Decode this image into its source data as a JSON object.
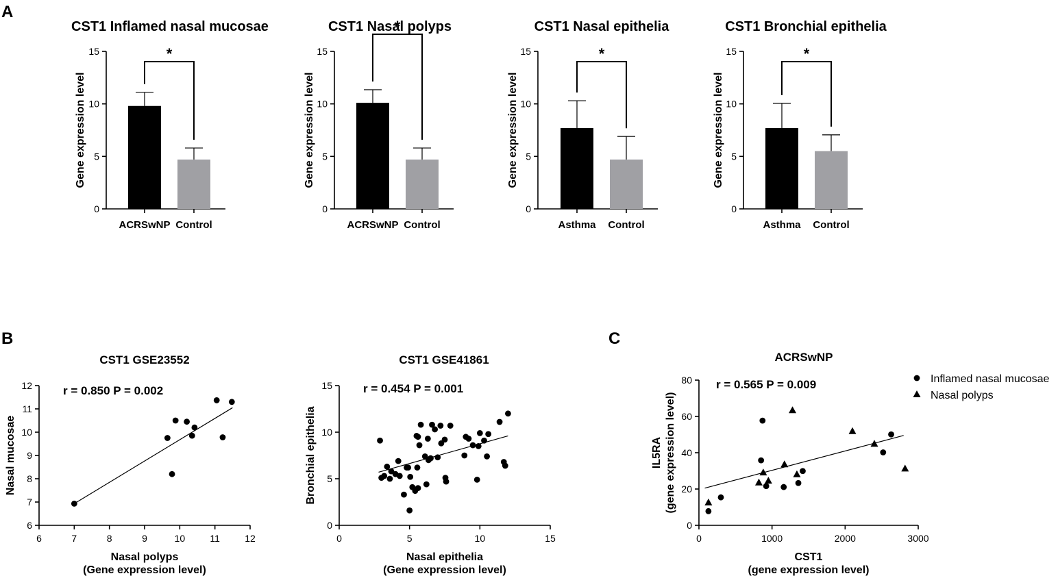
{
  "panel_labels": [
    "A",
    "B",
    "C"
  ],
  "chart_data": [
    {
      "type": "bar",
      "title": "CST1  Inflamed nasal mucosae",
      "categories": [
        "ACRSwNP",
        "Control"
      ],
      "values": [
        9.8,
        4.7
      ],
      "errors": [
        1.3,
        1.1
      ],
      "bar_colors": [
        "#000000",
        "#a0a0a4"
      ],
      "ylabel": "Gene expression level",
      "ylim": [
        0,
        15
      ],
      "yticks": [
        "0",
        "5",
        "10",
        "15"
      ],
      "significance": "*"
    },
    {
      "type": "bar",
      "title": "CST1  Nasal polyps",
      "categories": [
        "ACRSwNP",
        "Control"
      ],
      "values": [
        10.1,
        4.7
      ],
      "errors": [
        1.25,
        1.1
      ],
      "bar_colors": [
        "#000000",
        "#a0a0a4"
      ],
      "ylabel": "Gene expression level",
      "ylim": [
        0,
        15
      ],
      "yticks": [
        "0",
        "5",
        "10",
        "15"
      ],
      "significance": "*"
    },
    {
      "type": "bar",
      "title": "CST1 Nasal epithelia",
      "categories": [
        "Asthma",
        "Control"
      ],
      "values": [
        7.7,
        4.7
      ],
      "errors": [
        2.6,
        2.2
      ],
      "bar_colors": [
        "#000000",
        "#a0a0a4"
      ],
      "ylabel": "Gene expression level",
      "ylim": [
        0,
        15
      ],
      "yticks": [
        "0",
        "5",
        "10",
        "15"
      ],
      "significance": "*"
    },
    {
      "type": "bar",
      "title": "CST1 Bronchial epithelia",
      "categories": [
        "Asthma",
        "Control"
      ],
      "values": [
        7.7,
        5.5
      ],
      "errors": [
        2.35,
        1.55
      ],
      "bar_colors": [
        "#000000",
        "#a0a0a4"
      ],
      "ylabel": "Gene expression level",
      "ylim": [
        0,
        15
      ],
      "yticks": [
        "0",
        "5",
        "10",
        "15"
      ],
      "significance": "*"
    },
    {
      "type": "scatter",
      "title": "CST1 GSE23552",
      "annotation": "r = 0.850  P = 0.002",
      "xlabel": "Nasal polyps",
      "xlabel2": "(Gene expression level)",
      "ylabel": "Nasal mucosae",
      "xlim": [
        6,
        12
      ],
      "ylim": [
        6,
        12
      ],
      "xticks": [
        "6",
        "7",
        "8",
        "9",
        "10",
        "11",
        "12"
      ],
      "yticks": [
        "6",
        "7",
        "8",
        "9",
        "10",
        "11",
        "12"
      ],
      "fit_line": [
        [
          7.0,
          6.93
        ],
        [
          11.5,
          11.05
        ]
      ],
      "points": [
        {
          "x": 7.0,
          "y": 6.93
        },
        {
          "x": 9.65,
          "y": 9.75
        },
        {
          "x": 9.78,
          "y": 8.2
        },
        {
          "x": 9.88,
          "y": 10.5
        },
        {
          "x": 10.2,
          "y": 10.45
        },
        {
          "x": 10.35,
          "y": 9.85
        },
        {
          "x": 10.42,
          "y": 10.2
        },
        {
          "x": 11.05,
          "y": 11.37
        },
        {
          "x": 11.22,
          "y": 9.78
        },
        {
          "x": 11.48,
          "y": 11.3
        }
      ]
    },
    {
      "type": "scatter",
      "title": "CST1  GSE41861",
      "annotation": "r = 0.454  P = 0.001",
      "xlabel": "Nasal epithelia",
      "xlabel2": "(Gene expression level)",
      "ylabel": "Bronchial epithelia",
      "xlim": [
        0,
        15
      ],
      "ylim": [
        0,
        15
      ],
      "xticks": [
        "0",
        "5",
        "10",
        "15"
      ],
      "yticks": [
        "0",
        "5",
        "10",
        "15"
      ],
      "fit_line": [
        [
          2.8,
          5.7
        ],
        [
          12.0,
          9.6
        ]
      ],
      "points": [
        {
          "x": 2.9,
          "y": 9.1
        },
        {
          "x": 3.0,
          "y": 5.1
        },
        {
          "x": 3.2,
          "y": 5.3
        },
        {
          "x": 3.4,
          "y": 6.3
        },
        {
          "x": 3.6,
          "y": 5.0
        },
        {
          "x": 3.7,
          "y": 5.8
        },
        {
          "x": 4.0,
          "y": 5.5
        },
        {
          "x": 4.2,
          "y": 6.9
        },
        {
          "x": 4.3,
          "y": 5.3
        },
        {
          "x": 4.6,
          "y": 3.3
        },
        {
          "x": 4.8,
          "y": 6.2
        },
        {
          "x": 4.9,
          "y": 6.2
        },
        {
          "x": 5.0,
          "y": 1.6
        },
        {
          "x": 5.05,
          "y": 5.2
        },
        {
          "x": 5.2,
          "y": 4.1
        },
        {
          "x": 5.4,
          "y": 3.7
        },
        {
          "x": 5.5,
          "y": 9.6
        },
        {
          "x": 5.55,
          "y": 6.2
        },
        {
          "x": 5.6,
          "y": 9.5
        },
        {
          "x": 5.6,
          "y": 4.0
        },
        {
          "x": 5.7,
          "y": 8.6
        },
        {
          "x": 5.8,
          "y": 10.8
        },
        {
          "x": 6.1,
          "y": 7.4
        },
        {
          "x": 6.2,
          "y": 4.4
        },
        {
          "x": 6.3,
          "y": 9.3
        },
        {
          "x": 6.35,
          "y": 7.0
        },
        {
          "x": 6.5,
          "y": 7.2
        },
        {
          "x": 6.6,
          "y": 10.8
        },
        {
          "x": 6.8,
          "y": 10.3
        },
        {
          "x": 7.0,
          "y": 7.3
        },
        {
          "x": 7.2,
          "y": 10.7
        },
        {
          "x": 7.25,
          "y": 8.8
        },
        {
          "x": 7.5,
          "y": 9.2
        },
        {
          "x": 7.55,
          "y": 5.1
        },
        {
          "x": 7.6,
          "y": 4.7
        },
        {
          "x": 7.9,
          "y": 10.7
        },
        {
          "x": 8.9,
          "y": 7.5
        },
        {
          "x": 9.0,
          "y": 9.5
        },
        {
          "x": 9.2,
          "y": 9.3
        },
        {
          "x": 9.5,
          "y": 8.6
        },
        {
          "x": 9.8,
          "y": 4.9
        },
        {
          "x": 9.9,
          "y": 8.5
        },
        {
          "x": 10.0,
          "y": 9.9
        },
        {
          "x": 10.3,
          "y": 9.1
        },
        {
          "x": 10.5,
          "y": 7.4
        },
        {
          "x": 10.6,
          "y": 9.8
        },
        {
          "x": 11.4,
          "y": 11.1
        },
        {
          "x": 11.7,
          "y": 6.8
        },
        {
          "x": 11.8,
          "y": 6.4
        },
        {
          "x": 12.0,
          "y": 12.0
        }
      ]
    },
    {
      "type": "scatter",
      "title": "ACRSwNP",
      "annotation": "r = 0.565  P = 0.009",
      "xlabel": "CST1",
      "xlabel2": "(gene expression level)",
      "ylabel": "IL5RA",
      "ylabel2": "(gene expression level)",
      "xlim": [
        0,
        3000
      ],
      "ylim": [
        0,
        80
      ],
      "xticks": [
        "0",
        "1000",
        "2000",
        "3000"
      ],
      "yticks": [
        "0",
        "20",
        "40",
        "60",
        "80"
      ],
      "fit_line": [
        [
          80,
          20.5
        ],
        [
          2800,
          49.5
        ]
      ],
      "legend": [
        {
          "label": "Inflamed nasal mucosae",
          "marker": "circle"
        },
        {
          "label": "Nasal polyps",
          "marker": "triangle"
        }
      ],
      "series": [
        {
          "name": "Inflamed nasal mucosae",
          "marker": "circle",
          "points": [
            {
              "x": 130,
              "y": 7.8
            },
            {
              "x": 300,
              "y": 15.4
            },
            {
              "x": 850,
              "y": 35.8
            },
            {
              "x": 870,
              "y": 57.7
            },
            {
              "x": 920,
              "y": 21.6
            },
            {
              "x": 1160,
              "y": 21.1
            },
            {
              "x": 1360,
              "y": 23.3
            },
            {
              "x": 1420,
              "y": 29.9
            },
            {
              "x": 2520,
              "y": 40.2
            },
            {
              "x": 2630,
              "y": 50.1
            }
          ]
        },
        {
          "name": "Nasal polyps",
          "marker": "triangle",
          "points": [
            {
              "x": 130,
              "y": 12.5
            },
            {
              "x": 820,
              "y": 23.5
            },
            {
              "x": 880,
              "y": 29.0
            },
            {
              "x": 950,
              "y": 24.5
            },
            {
              "x": 1170,
              "y": 33.5
            },
            {
              "x": 1280,
              "y": 63.3
            },
            {
              "x": 1340,
              "y": 28.0
            },
            {
              "x": 2100,
              "y": 51.8
            },
            {
              "x": 2400,
              "y": 44.8
            },
            {
              "x": 2820,
              "y": 31.2
            }
          ]
        }
      ]
    }
  ]
}
